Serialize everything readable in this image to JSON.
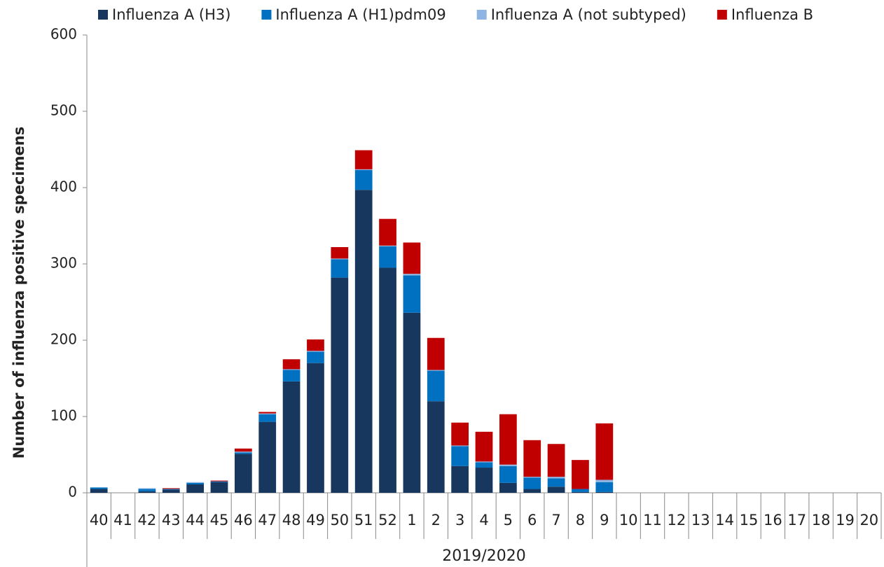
{
  "chart_data": {
    "type": "bar",
    "stacked": true,
    "ylabel": "Number of influenza positive specimens",
    "xlabel": "2019/2020",
    "categories": [
      "40",
      "41",
      "42",
      "43",
      "44",
      "45",
      "46",
      "47",
      "48",
      "49",
      "50",
      "51",
      "52",
      "1",
      "2",
      "3",
      "4",
      "5",
      "6",
      "7",
      "8",
      "9",
      "10",
      "11",
      "12",
      "13",
      "14",
      "15",
      "16",
      "17",
      "18",
      "19",
      "20"
    ],
    "series": [
      {
        "name": "Influenza A (H3)",
        "color": "#17375e",
        "values": [
          5,
          0,
          2,
          4,
          11,
          14,
          51,
          93,
          146,
          170,
          282,
          397,
          295,
          236,
          120,
          35,
          33,
          13,
          5,
          8,
          1,
          1,
          0,
          0,
          0,
          0,
          0,
          0,
          0,
          0,
          0,
          0,
          0
        ]
      },
      {
        "name": "Influenza A (H1)pdm09",
        "color": "#0070c0",
        "values": [
          2,
          0,
          3,
          1,
          2,
          1,
          2,
          10,
          15,
          15,
          24,
          26,
          28,
          49,
          40,
          26,
          7,
          22,
          15,
          11,
          4,
          13,
          0,
          0,
          0,
          0,
          0,
          0,
          0,
          0,
          0,
          0,
          0
        ]
      },
      {
        "name": "Influenza A (not subtyped)",
        "color": "#8db4e2",
        "values": [
          0,
          0,
          1,
          0,
          1,
          0,
          1,
          1,
          1,
          1,
          1,
          1,
          1,
          2,
          1,
          1,
          1,
          2,
          1,
          2,
          0,
          3,
          0,
          0,
          0,
          0,
          0,
          0,
          0,
          0,
          0,
          0,
          0
        ]
      },
      {
        "name": "Influenza B",
        "color": "#c00000",
        "values": [
          0,
          0,
          0,
          1,
          0,
          1,
          4,
          2,
          13,
          15,
          15,
          25,
          35,
          41,
          42,
          30,
          39,
          66,
          48,
          43,
          38,
          74,
          0,
          0,
          0,
          0,
          0,
          0,
          0,
          0,
          0,
          0,
          0
        ]
      }
    ],
    "ylim": [
      0,
      600
    ],
    "yticks": [
      0,
      100,
      200,
      300,
      400,
      500,
      600
    ],
    "grid": false,
    "legend": "top"
  }
}
